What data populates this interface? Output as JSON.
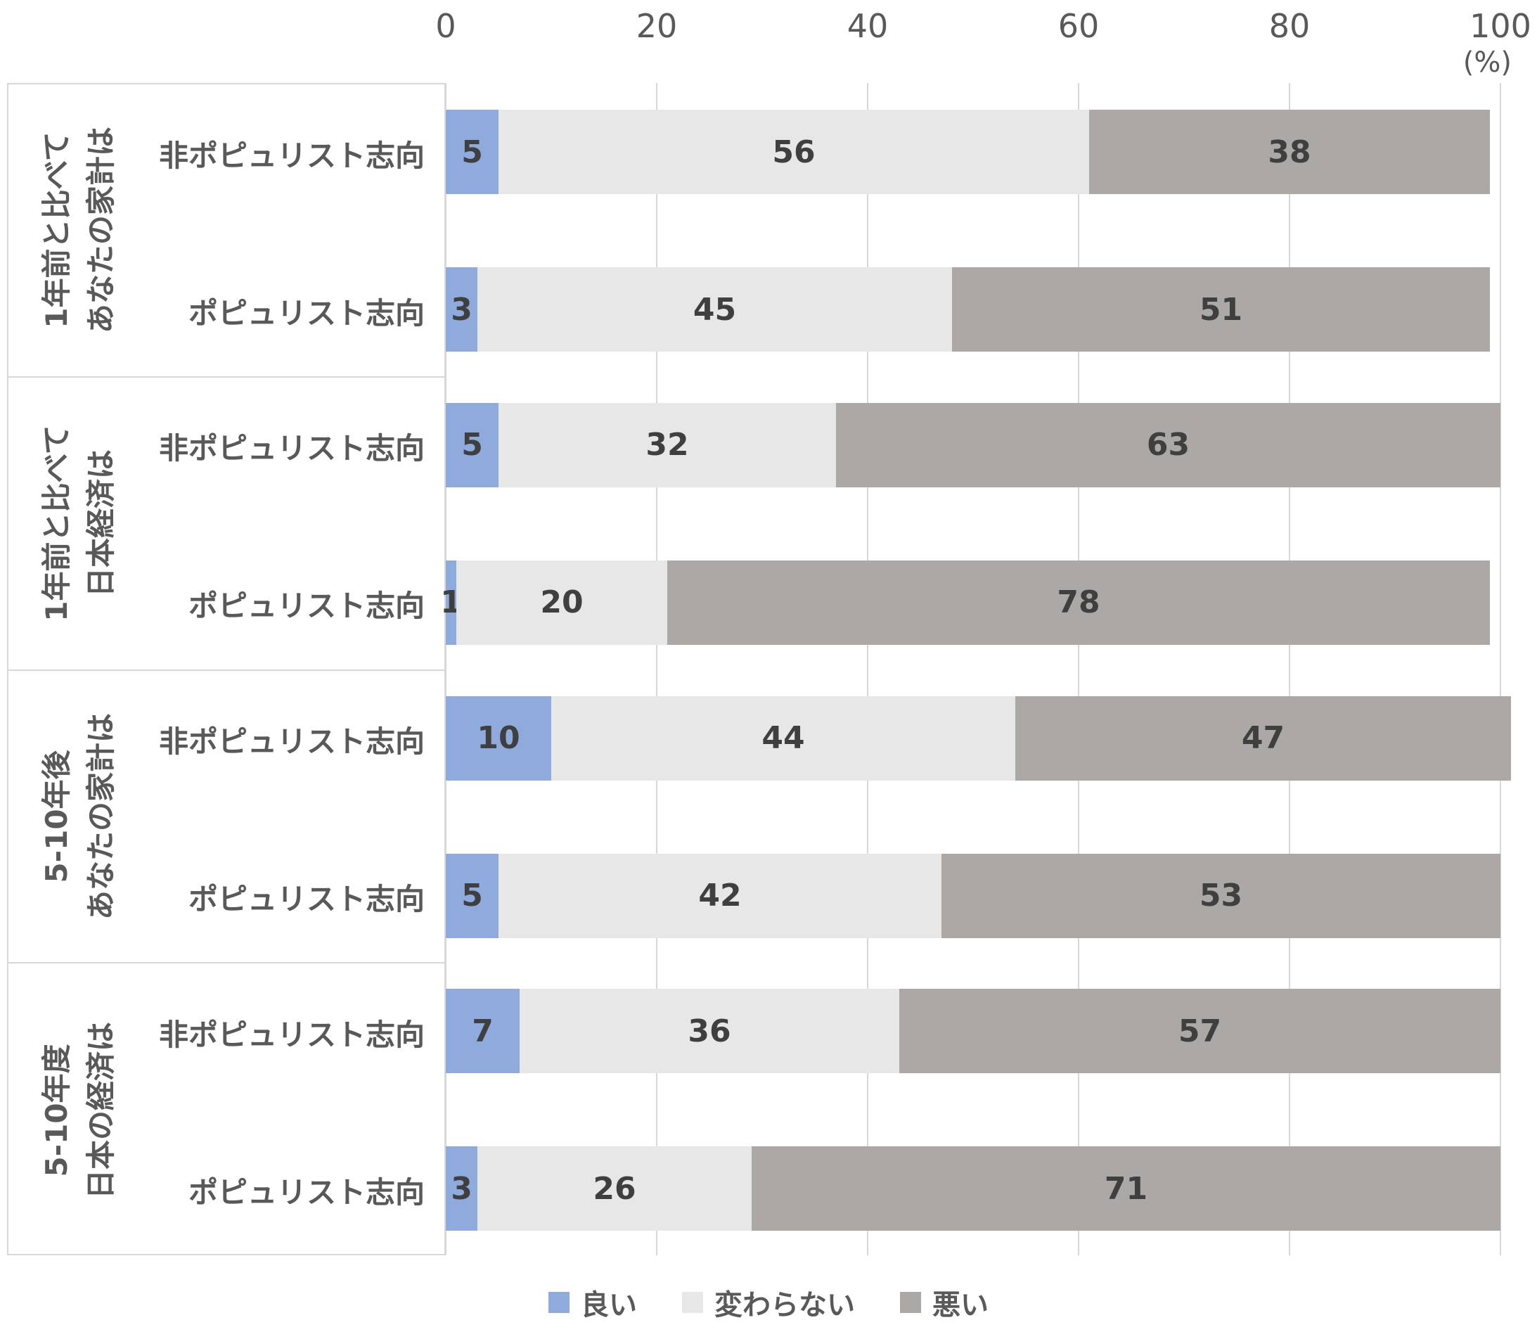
{
  "axis": {
    "ticks": [
      "0",
      "20",
      "40",
      "60",
      "80",
      "100"
    ],
    "unit_label": "(%)",
    "min": 0,
    "max": 100,
    "tick_step": 20
  },
  "chart_data": {
    "type": "bar",
    "orientation": "horizontal",
    "stacked": true,
    "unit": "%",
    "xlim": [
      0,
      100
    ],
    "grid": true,
    "legend_position": "bottom",
    "series": [
      {
        "key": "good",
        "name": "良い",
        "color": "#8FAADC"
      },
      {
        "key": "unchanged",
        "name": "変わらない",
        "color": "#E7E7E7"
      },
      {
        "key": "bad",
        "name": "悪い",
        "color": "#ABA8A6"
      }
    ],
    "groups": [
      {
        "label_lines": [
          "1年前と比べて",
          "あなたの家計は"
        ],
        "rows": [
          {
            "label": "非ポピュリスト志向",
            "values": [
              5,
              56,
              38
            ]
          },
          {
            "label": "ポピュリスト志向",
            "values": [
              3,
              45,
              51
            ]
          }
        ]
      },
      {
        "label_lines": [
          "1年前と比べて",
          "日本経済は"
        ],
        "rows": [
          {
            "label": "非ポピュリスト志向",
            "values": [
              5,
              32,
              63
            ]
          },
          {
            "label": "ポピュリスト志向",
            "values": [
              1,
              20,
              78
            ]
          }
        ]
      },
      {
        "label_lines": [
          "5-10年後",
          "あなたの家計は"
        ],
        "rows": [
          {
            "label": "非ポピュリスト志向",
            "values": [
              10,
              44,
              47
            ]
          },
          {
            "label": "ポピュリスト志向",
            "values": [
              5,
              42,
              53
            ]
          }
        ]
      },
      {
        "label_lines": [
          "5-10年度",
          "日本の経済は"
        ],
        "rows": [
          {
            "label": "非ポピュリスト志向",
            "values": [
              7,
              36,
              57
            ]
          },
          {
            "label": "ポピュリスト志向",
            "values": [
              3,
              26,
              71
            ]
          }
        ]
      }
    ]
  },
  "colors": {
    "text": "#595959",
    "data_label": "#3F3F3F",
    "gridline": "#D8D8D8",
    "panel_border": "#D8D8D8",
    "background": "#FFFFFF"
  }
}
